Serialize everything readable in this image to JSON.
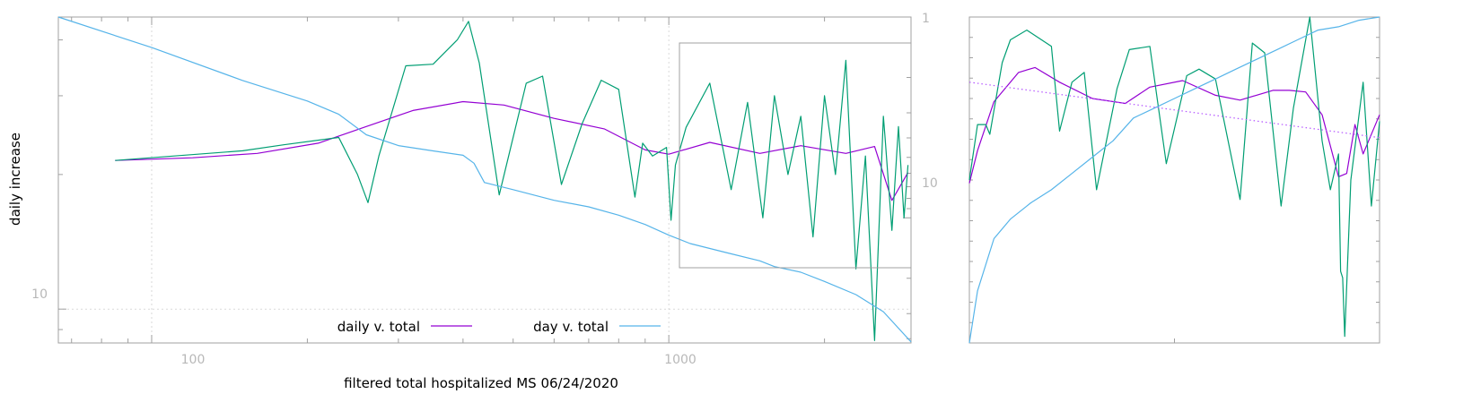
{
  "chart_data": [
    {
      "type": "line",
      "xlabel": "filtered total hospitalized MS 06/24/2020",
      "ylabel": "daily increase",
      "x_scale": "log",
      "y_scale": "log",
      "xlim": [
        66,
        2940
      ],
      "ylim_left": [
        8.4,
        45
      ],
      "ylim_right_reversed": [
        1,
        42
      ],
      "x_ticks": [
        "100",
        "1000"
      ],
      "y_ticks_left": [
        "10"
      ],
      "y_ticks_right": [
        "1",
        "10"
      ],
      "grid": "dotted on major ticks",
      "legend": [
        {
          "label": "daily v. total",
          "color": "#9400d3"
        },
        {
          "label": "day v. total",
          "color": "#56b4e9"
        }
      ],
      "series": [
        {
          "name": "daily v. total",
          "color": "#9400d3",
          "x": [
            85,
            120,
            160,
            210,
            260,
            320,
            400,
            480,
            600,
            750,
            900,
            1000,
            1200,
            1500,
            1800,
            2200,
            2500,
            2700,
            2900
          ],
          "y": [
            21.5,
            21.8,
            22.3,
            23.5,
            25.6,
            27.8,
            29.1,
            28.6,
            26.7,
            25.3,
            22.7,
            22.2,
            23.6,
            22.3,
            23.2,
            22.3,
            23.1,
            17.5,
            20.2
          ]
        },
        {
          "name": "",
          "color": "#009e73",
          "x": [
            85,
            150,
            180,
            230,
            250,
            262,
            275,
            310,
            350,
            390,
            410,
            430,
            470,
            530,
            570,
            620,
            680,
            740,
            800,
            860,
            890,
            930,
            990,
            1010,
            1030,
            1080,
            1200,
            1320,
            1420,
            1520,
            1600,
            1700,
            1800,
            1900,
            2000,
            2100,
            2200,
            2300,
            2400,
            2500,
            2600,
            2620,
            2700,
            2780,
            2850,
            2900
          ],
          "y": [
            21.5,
            22.6,
            23.3,
            24.2,
            20,
            17.3,
            22,
            35,
            35.3,
            40,
            44,
            35.5,
            18,
            32,
            33.2,
            19,
            26,
            32.5,
            31,
            17.8,
            23.5,
            22,
            23,
            15.8,
            21,
            25.5,
            32,
            18.5,
            29,
            16,
            30,
            20,
            27,
            14.5,
            30,
            20,
            36,
            12.3,
            22,
            8.5,
            27,
            24,
            15,
            25.6,
            16,
            21
          ]
        },
        {
          "name": "day v. total",
          "color": "#56b4e9",
          "x": [
            66,
            100,
            150,
            200,
            230,
            260,
            300,
            350,
            400,
            420,
            440,
            500,
            600,
            700,
            800,
            900,
            1000,
            1100,
            1300,
            1500,
            1600,
            1800,
            2000,
            2300,
            2600,
            2940
          ],
          "y": [
            1,
            1.42,
            2.07,
            2.62,
            3.05,
            3.86,
            4.37,
            4.64,
            4.88,
            5.35,
            6.67,
            7.24,
            8.18,
            8.82,
            9.7,
            10.8,
            12.2,
            13.44,
            14.96,
            16.38,
            17.5,
            18.66,
            20.75,
            24.12,
            29.34,
            41.5
          ]
        }
      ]
    },
    {
      "type": "line",
      "description_free_inset": true,
      "series": [
        {
          "name": "",
          "color": "#9400d3",
          "t": [
            0,
            0.02,
            0.06,
            0.12,
            0.16,
            0.22,
            0.3,
            0.38,
            0.44,
            0.52,
            0.6,
            0.66,
            0.74,
            0.78,
            0.82,
            0.86,
            0.9,
            0.92,
            0.94,
            0.96,
            1.0
          ],
          "v": [
            0.51,
            0.41,
            0.26,
            0.17,
            0.155,
            0.2,
            0.25,
            0.265,
            0.215,
            0.195,
            0.24,
            0.255,
            0.225,
            0.225,
            0.23,
            0.3,
            0.49,
            0.48,
            0.33,
            0.42,
            0.3
          ]
        },
        {
          "name": "",
          "color": "#009e73",
          "t": [
            0,
            0.02,
            0.04,
            0.05,
            0.08,
            0.1,
            0.14,
            0.2,
            0.22,
            0.25,
            0.28,
            0.31,
            0.36,
            0.39,
            0.44,
            0.48,
            0.53,
            0.56,
            0.6,
            0.66,
            0.69,
            0.72,
            0.76,
            0.79,
            0.83,
            0.86,
            0.88,
            0.9,
            0.905,
            0.91,
            0.915,
            0.93,
            0.96,
            0.98,
            1.0
          ],
          "v": [
            0.5,
            0.33,
            0.33,
            0.36,
            0.14,
            0.07,
            0.04,
            0.09,
            0.35,
            0.2,
            0.17,
            0.53,
            0.22,
            0.1,
            0.09,
            0.45,
            0.18,
            0.16,
            0.19,
            0.56,
            0.08,
            0.11,
            0.58,
            0.28,
            0.0,
            0.38,
            0.53,
            0.42,
            0.78,
            0.8,
            0.98,
            0.5,
            0.2,
            0.58,
            0.32
          ]
        },
        {
          "name": "",
          "color": "#56b4e9",
          "t": [
            0,
            0.02,
            0.06,
            0.1,
            0.15,
            0.2,
            0.25,
            0.3,
            0.35,
            0.4,
            0.45,
            0.5,
            0.55,
            0.6,
            0.65,
            0.7,
            0.75,
            0.8,
            0.85,
            0.9,
            0.95,
            1.0
          ],
          "v": [
            1.0,
            0.84,
            0.68,
            0.62,
            0.57,
            0.53,
            0.48,
            0.43,
            0.38,
            0.31,
            0.28,
            0.25,
            0.22,
            0.19,
            0.16,
            0.13,
            0.1,
            0.07,
            0.04,
            0.03,
            0.01,
            0.0
          ]
        },
        {
          "name": "",
          "color": "#b455ff",
          "dotted": true,
          "t": [
            0,
            1
          ],
          "v": [
            0.2,
            0.37
          ]
        }
      ]
    }
  ],
  "colors": {
    "axis": "#a0a0a0",
    "grid": "#d9d9d9",
    "frame": "#a0a0a0"
  }
}
